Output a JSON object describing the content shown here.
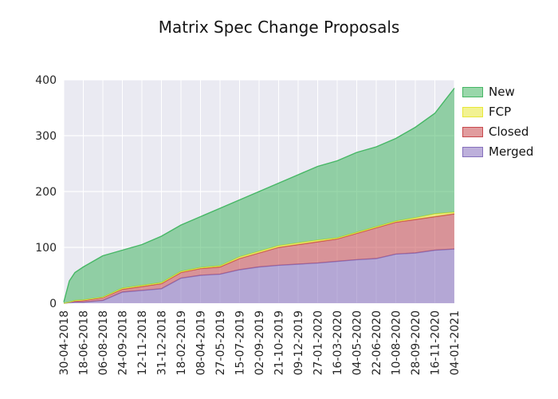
{
  "chart_data": {
    "type": "area",
    "stacked": true,
    "title": "Matrix Spec Change Proposals",
    "xlabel": "",
    "ylabel": "",
    "ylim": [
      0,
      400
    ],
    "y_ticks": [
      0,
      100,
      200,
      300,
      400
    ],
    "grid": true,
    "legend_position": "right",
    "plot_bg": "#eaeaf2",
    "grid_color": "#ffffff",
    "fill_alpha": 0.55,
    "x": [
      "30-04-2018",
      "14-05-2018",
      "28-05-2018",
      "18-06-2018",
      "06-08-2018",
      "24-09-2018",
      "12-11-2018",
      "31-12-2018",
      "18-02-2019",
      "08-04-2019",
      "27-05-2019",
      "15-07-2019",
      "02-09-2019",
      "21-10-2019",
      "09-12-2019",
      "27-01-2020",
      "16-03-2020",
      "04-05-2020",
      "22-06-2020",
      "10-08-2020",
      "28-09-2020",
      "16-11-2020",
      "04-01-2021"
    ],
    "x_ticks": [
      "30-04-2018",
      "18-06-2018",
      "06-08-2018",
      "24-09-2018",
      "12-11-2018",
      "31-12-2018",
      "18-02-2019",
      "08-04-2019",
      "27-05-2019",
      "15-07-2019",
      "02-09-2019",
      "21-10-2019",
      "09-12-2019",
      "27-01-2020",
      "16-03-2020",
      "04-05-2020",
      "22-06-2020",
      "10-08-2020",
      "28-09-2020",
      "16-11-2020",
      "04-01-2021"
    ],
    "stack_order": [
      "Merged",
      "Closed",
      "FCP",
      "New"
    ],
    "series": [
      {
        "name": "New",
        "color": "#46b765",
        "values": [
          2,
          38,
          50,
          59,
          74,
          68,
          73,
          83,
          83,
          91,
          103,
          102,
          107,
          112,
          122,
          132,
          138,
          143,
          143,
          148,
          162,
          180,
          222
        ]
      },
      {
        "name": "FCP",
        "color": "#e8e838",
        "values": [
          0,
          0,
          1,
          1,
          1,
          2,
          2,
          2,
          2,
          2,
          2,
          3,
          3,
          3,
          3,
          3,
          2,
          2,
          2,
          2,
          3,
          5,
          3
        ]
      },
      {
        "name": "Closed",
        "color": "#c94a4e",
        "values": [
          0,
          1,
          2,
          3,
          5,
          5,
          7,
          9,
          10,
          12,
          13,
          20,
          25,
          32,
          35,
          38,
          40,
          47,
          55,
          57,
          60,
          60,
          63
        ]
      },
      {
        "name": "Merged",
        "color": "#8670bd",
        "values": [
          0,
          1,
          2,
          2,
          5,
          20,
          23,
          26,
          45,
          50,
          52,
          60,
          65,
          68,
          70,
          72,
          75,
          78,
          80,
          88,
          90,
          95,
          97
        ]
      }
    ]
  }
}
